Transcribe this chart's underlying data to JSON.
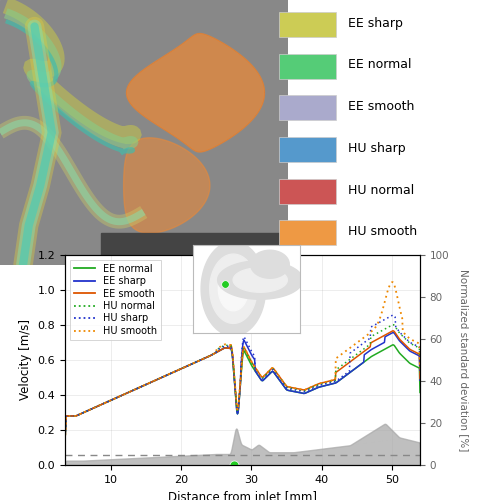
{
  "xlabel": "Distance from inlet [mm]",
  "ylabel_left": "Velocity [m/s]",
  "ylabel_right": "Normalized standard deviation [%]",
  "xlim": [
    3.5,
    54
  ],
  "ylim_left": [
    0,
    1.2
  ],
  "ylim_right": [
    0,
    100
  ],
  "x_ticks": [
    10,
    20,
    30,
    40,
    50
  ],
  "y_ticks_left": [
    0,
    0.2,
    0.4,
    0.6,
    0.8,
    1.0,
    1.2
  ],
  "y_ticks_right": [
    0,
    20,
    40,
    60,
    80,
    100
  ],
  "dashed_line_y": 0.06,
  "green_dot_x": 27.5,
  "green_dot_y": 0.0,
  "ee_normal_color": "#22aa22",
  "ee_sharp_color": "#2233cc",
  "ee_smooth_color": "#dd5500",
  "hu_normal_color": "#22aa22",
  "hu_sharp_color": "#2233cc",
  "hu_smooth_color": "#ee8800",
  "top_legend_items": [
    {
      "label": "EE sharp",
      "color": "#cccc55"
    },
    {
      "label": "EE normal",
      "color": "#55cc77"
    },
    {
      "label": "EE smooth",
      "color": "#aaaacc"
    },
    {
      "label": "HU sharp",
      "color": "#5599cc"
    },
    {
      "label": "HU normal",
      "color": "#cc5555"
    },
    {
      "label": "HU smooth",
      "color": "#ee9944"
    }
  ],
  "gray_bg": "#888888",
  "dark_gray": "#555555"
}
